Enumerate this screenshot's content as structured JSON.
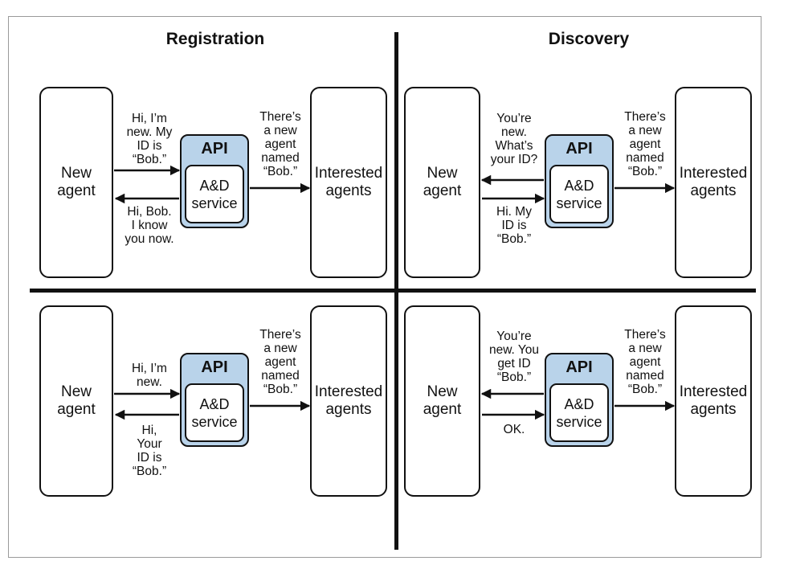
{
  "header_line": "",
  "sections": {
    "registration_title": "Registration",
    "discovery_title": "Discovery"
  },
  "boxes": {
    "new_agent": "New\nagent",
    "interested_agents": "Interested\nagents",
    "api": "API",
    "service": "A&D\nservice"
  },
  "panels": {
    "reg_top": {
      "to_api": "Hi, I’m\nnew. My\nID is\n“Bob.”",
      "from_api": "Hi, Bob.\nI know\nyou now.",
      "to_interested": "There’s\na new\nagent\nnamed\n“Bob.”"
    },
    "reg_bottom": {
      "to_api": "Hi, I’m\nnew.",
      "from_api": "Hi,\nYour\nID is\n“Bob.”",
      "to_interested": "There’s\na new\nagent\nnamed\n“Bob.”"
    },
    "disc_top": {
      "from_api": "You’re\nnew.\nWhat’s\nyour ID?",
      "to_api": "Hi. My\nID is\n“Bob.”",
      "to_interested": "There’s\na new\nagent\nnamed\n“Bob.”"
    },
    "disc_bottom": {
      "from_api": "You’re\nnew. You\nget ID\n“Bob.”",
      "to_api": "OK.",
      "to_interested": "There’s\na new\nagent\nnamed\n“Bob.”"
    }
  },
  "colors": {
    "api_fill": "#b9d3ea",
    "ink": "#111111"
  }
}
